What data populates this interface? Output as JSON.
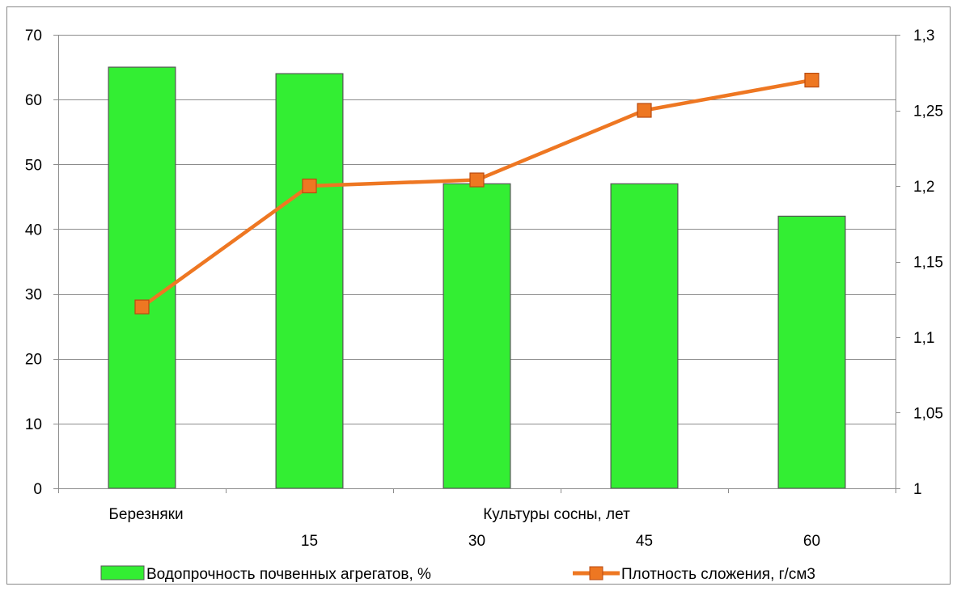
{
  "chart_data": {
    "type": "bar",
    "categories_top": [
      "Березняки",
      "",
      "",
      "",
      ""
    ],
    "categories_bottom": [
      "",
      "15",
      "30",
      "45",
      "60"
    ],
    "group_label": "Культуры сосны, лет",
    "series": [
      {
        "name": "Водопрочность почвенных агрегатов, %",
        "type": "bar",
        "axis": "left",
        "values": [
          65,
          64,
          47,
          47,
          42
        ],
        "color": "#33ee33",
        "border": "#555555"
      },
      {
        "name": "Плотность сложения, г/см3",
        "type": "line",
        "axis": "right",
        "values": [
          1.12,
          1.2,
          1.204,
          1.25,
          1.27
        ],
        "color": "#ee7722",
        "marker_fill": "#ee7722",
        "marker_border": "#b84a10"
      }
    ],
    "y_left": {
      "min": 0,
      "max": 70,
      "step": 10,
      "ticks": [
        "0",
        "10",
        "20",
        "30",
        "40",
        "50",
        "60",
        "70"
      ]
    },
    "y_right": {
      "min": 1,
      "max": 1.3,
      "step": 0.05,
      "ticks": [
        "1",
        "1,05",
        "1,1",
        "1,15",
        "1,2",
        "1,25",
        "1,3"
      ]
    },
    "grid": true,
    "legend_position": "bottom",
    "title": ""
  }
}
